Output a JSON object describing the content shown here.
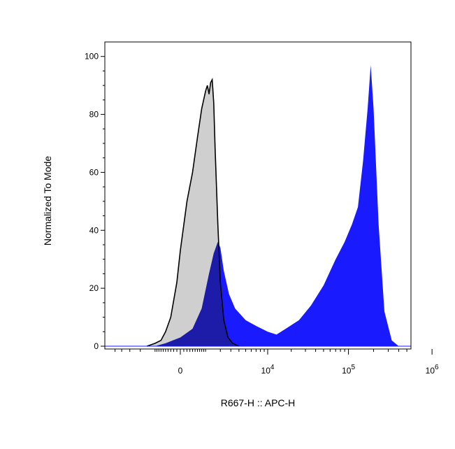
{
  "chart_data": {
    "type": "area",
    "title": "",
    "xlabel": "R667-H :: APC-H",
    "ylabel": "Normalized To Mode",
    "xscale": "biexponential",
    "ylim": [
      0,
      105
    ],
    "grid": false,
    "legend": "none",
    "y_ticks": [
      {
        "value": 0,
        "label": "0"
      },
      {
        "value": 20,
        "label": "20"
      },
      {
        "value": 40,
        "label": "40"
      },
      {
        "value": 60,
        "label": "60"
      },
      {
        "value": 80,
        "label": "80"
      },
      {
        "value": 100,
        "label": "100"
      }
    ],
    "x_ticks": [
      {
        "value": 0,
        "base": "0",
        "exp": ""
      },
      {
        "value": 10000,
        "base": "10",
        "exp": "4"
      },
      {
        "value": 100000,
        "base": "10",
        "exp": "5"
      },
      {
        "value": 1000000,
        "base": "10",
        "exp": "6"
      }
    ],
    "colors": {
      "control_fill": "#cfcfcf",
      "control_line": "#000000",
      "stained_fill": "#1a1aff",
      "overlap_fill": "#1c1ca8"
    },
    "series": [
      {
        "key": "control",
        "x": [
          -1500,
          -1000,
          -700,
          -500,
          -300,
          -100,
          0,
          200,
          400,
          600,
          800,
          1000,
          1100,
          1200,
          1300,
          1400,
          1500,
          1600,
          1800,
          2000,
          2300,
          2700,
          3200,
          4000
        ],
        "values": [
          0,
          1,
          2,
          5,
          10,
          22,
          33,
          50,
          60,
          72,
          82,
          88,
          90,
          87,
          91,
          92,
          84,
          68,
          42,
          22,
          9,
          3,
          1,
          0
        ]
      },
      {
        "key": "stained",
        "x": [
          -1500,
          -1000,
          -500,
          0,
          400,
          800,
          1200,
          1500,
          1800,
          2000,
          2300,
          2800,
          3500,
          5000,
          7000,
          10000,
          13000,
          17000,
          25000,
          35000,
          50000,
          70000,
          90000,
          110000,
          130000,
          150000,
          170000,
          185000,
          200000,
          230000,
          270000,
          330000,
          400000
        ],
        "values": [
          0,
          0,
          1,
          3,
          6,
          13,
          25,
          32,
          36,
          34,
          26,
          18,
          13,
          9,
          7,
          5,
          4,
          6,
          9,
          14,
          21,
          30,
          36,
          42,
          48,
          64,
          82,
          97,
          82,
          42,
          12,
          2,
          0
        ]
      }
    ]
  }
}
